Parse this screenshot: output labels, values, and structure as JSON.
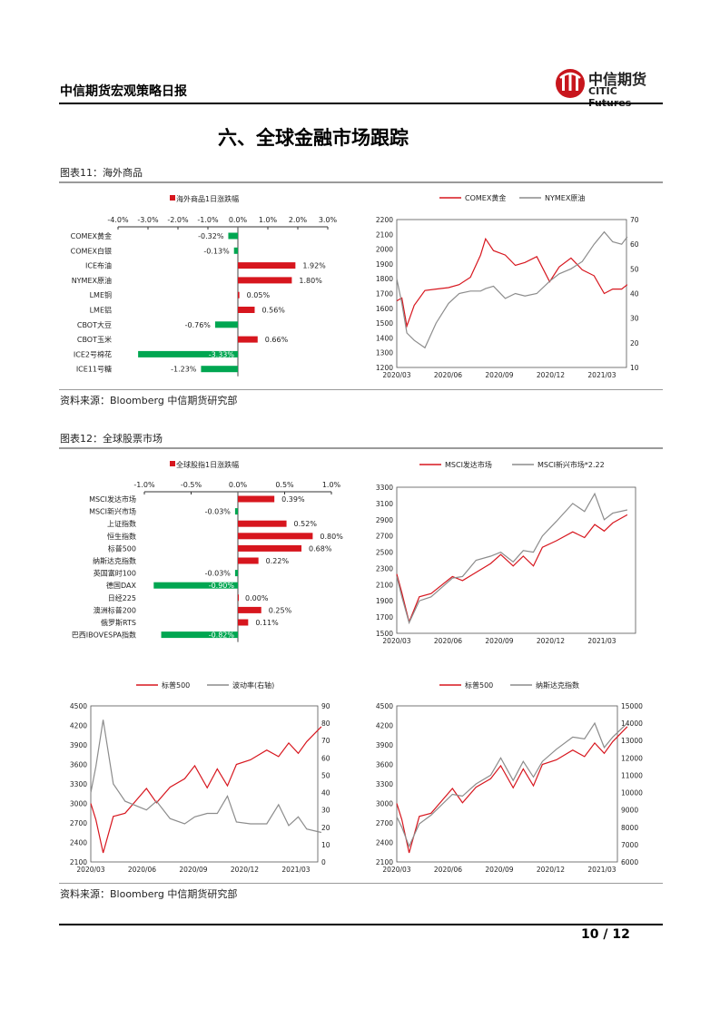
{
  "header": {
    "title": "中信期货宏观策略日报",
    "logo_cn": "中信期货",
    "logo_en": "CITIC Futures"
  },
  "section_title": "六、全球金融市场跟踪",
  "fig11": {
    "label": "图表11：海外商品",
    "source": "资料来源：Bloomberg 中信期货研究部"
  },
  "fig12": {
    "label": "图表12：全球股票市场",
    "source": "资料来源：Bloomberg 中信期货研究部"
  },
  "footer": {
    "page": "10 / 12"
  },
  "colors": {
    "up": "#d7161e",
    "down": "#00a651",
    "line_red": "#d7161e",
    "line_grey": "#8c8c8c"
  },
  "chart_data": [
    {
      "type": "bar",
      "orientation": "horizontal",
      "legend": "海外商品1日涨跌幅",
      "xlim": [
        -4,
        3
      ],
      "ticks": [
        "-4.0%",
        "-3.0%",
        "-2.0%",
        "-1.0%",
        "0.0%",
        "1.0%",
        "2.0%",
        "3.0%"
      ],
      "categories": [
        "COMEX黄金",
        "COMEX白银",
        "ICE布油",
        "NYMEX原油",
        "LME铜",
        "LME铝",
        "CBOT大豆",
        "CBOT玉米",
        "ICE2号棉花",
        "ICE11号糖"
      ],
      "values": [
        -0.32,
        -0.13,
        1.92,
        1.8,
        0.05,
        0.56,
        -0.76,
        0.66,
        -3.33,
        -1.23
      ],
      "labels": [
        "-0.32%",
        "-0.13%",
        "1.92%",
        "1.80%",
        "0.05%",
        "0.56%",
        "-0.76%",
        "0.66%",
        "-3.33%",
        "-1.23%"
      ]
    },
    {
      "type": "line",
      "series": [
        {
          "name": "COMEX黄金",
          "axis": "left"
        },
        {
          "name": "NYMEX原油",
          "axis": "right"
        }
      ],
      "ylim_left": [
        1200,
        2200
      ],
      "yticks_left": [
        "2200",
        "2100",
        "2000",
        "1900",
        "1800",
        "1700",
        "1600",
        "1500",
        "1400",
        "1300",
        "1200"
      ],
      "ylim_right": [
        10,
        70
      ],
      "yticks_right": [
        "70",
        "60",
        "50",
        "40",
        "30",
        "20",
        "10"
      ],
      "xticks": [
        "2020/03",
        "2020/06",
        "2020/09",
        "2020/12",
        "2021/03"
      ],
      "x": [
        "2020-03-01",
        "2020-03-10",
        "2020-03-19",
        "2020-04-01",
        "2020-04-20",
        "2020-05-10",
        "2020-06-01",
        "2020-06-20",
        "2020-07-10",
        "2020-07-28",
        "2020-08-06",
        "2020-08-20",
        "2020-09-10",
        "2020-09-28",
        "2020-10-15",
        "2020-11-05",
        "2020-11-28",
        "2020-12-15",
        "2021-01-05",
        "2021-01-25",
        "2021-02-15",
        "2021-03-05",
        "2021-03-20",
        "2021-04-05",
        "2021-04-15"
      ],
      "y_left": [
        1650,
        1670,
        1480,
        1620,
        1720,
        1730,
        1740,
        1760,
        1810,
        1960,
        2070,
        1990,
        1960,
        1890,
        1910,
        1950,
        1780,
        1880,
        1940,
        1860,
        1820,
        1700,
        1730,
        1730,
        1760
      ],
      "y_right": [
        46,
        36,
        24,
        21,
        18,
        28,
        36,
        40,
        41,
        41,
        42,
        43,
        38,
        40,
        39,
        40,
        45,
        48,
        50,
        53,
        60,
        65,
        61,
        60,
        63
      ]
    },
    {
      "type": "bar",
      "orientation": "horizontal",
      "legend": "全球股指1日涨跌幅",
      "xlim": [
        -1,
        1
      ],
      "ticks": [
        "-1.0%",
        "-0.5%",
        "0.0%",
        "0.5%",
        "1.0%"
      ],
      "categories": [
        "MSCI发达市场",
        "MSCI新兴市场",
        "上证指数",
        "恒生指数",
        "标普500",
        "纳斯达克指数",
        "英国富时100",
        "德国DAX",
        "日经225",
        "澳洲标普200",
        "俄罗斯RTS",
        "巴西IBOVESPA指数"
      ],
      "values": [
        0.39,
        -0.03,
        0.52,
        0.8,
        0.68,
        0.22,
        -0.03,
        -0.9,
        0.0,
        0.25,
        0.11,
        -0.82
      ],
      "labels": [
        "0.39%",
        "-0.03%",
        "0.52%",
        "0.80%",
        "0.68%",
        "0.22%",
        "-0.03%",
        "-0.90%",
        "0.00%",
        "0.25%",
        "0.11%",
        "-0.82%"
      ]
    },
    {
      "type": "line",
      "series": [
        {
          "name": "MSCI发达市场",
          "axis": "left"
        },
        {
          "name": "MSCI新兴市场*2.22",
          "axis": "left"
        }
      ],
      "ylim_left": [
        1500,
        3300
      ],
      "yticks_left": [
        "3300",
        "3100",
        "2900",
        "2700",
        "2500",
        "2300",
        "2100",
        "1900",
        "1700",
        "1500"
      ],
      "xticks": [
        "2020/03",
        "2020/06",
        "2020/09",
        "2020/12",
        "2021/03"
      ],
      "x": [
        "2020-03-01",
        "2020-03-10",
        "2020-03-23",
        "2020-04-10",
        "2020-05-01",
        "2020-06-08",
        "2020-06-26",
        "2020-07-20",
        "2020-08-15",
        "2020-09-02",
        "2020-09-24",
        "2020-10-12",
        "2020-10-30",
        "2020-11-15",
        "2020-12-10",
        "2021-01-08",
        "2021-01-29",
        "2021-02-16",
        "2021-03-05",
        "2021-03-20",
        "2021-04-15"
      ],
      "y_left": [
        2230,
        2000,
        1640,
        1950,
        1990,
        2200,
        2150,
        2250,
        2360,
        2470,
        2330,
        2450,
        2330,
        2560,
        2640,
        2750,
        2680,
        2840,
        2760,
        2860,
        2960
      ],
      "y_right": [
        2200,
        1950,
        1630,
        1900,
        1950,
        2180,
        2200,
        2400,
        2450,
        2500,
        2380,
        2520,
        2500,
        2700,
        2880,
        3100,
        3000,
        3220,
        2900,
        2980,
        3020
      ]
    },
    {
      "type": "line",
      "series": [
        {
          "name": "标普500",
          "axis": "left"
        },
        {
          "name": "波动率(右轴)",
          "axis": "right"
        }
      ],
      "ylim_left": [
        2100,
        4500
      ],
      "yticks_left": [
        "4500",
        "4200",
        "3900",
        "3600",
        "3300",
        "3000",
        "2700",
        "2400",
        "2100"
      ],
      "ylim_right": [
        0,
        90
      ],
      "yticks_right": [
        "90",
        "80",
        "70",
        "60",
        "50",
        "40",
        "30",
        "20",
        "10",
        "0"
      ],
      "xticks": [
        "2020/03",
        "2020/06",
        "2020/09",
        "2020/12",
        "2021/03"
      ],
      "x": [
        "2020-03-01",
        "2020-03-10",
        "2020-03-23",
        "2020-04-10",
        "2020-05-01",
        "2020-06-08",
        "2020-06-26",
        "2020-07-20",
        "2020-08-15",
        "2020-09-02",
        "2020-09-24",
        "2020-10-12",
        "2020-10-30",
        "2020-11-15",
        "2020-12-10",
        "2021-01-08",
        "2021-01-29",
        "2021-02-16",
        "2021-03-05",
        "2021-03-20",
        "2021-04-15"
      ],
      "y_left": [
        3000,
        2750,
        2240,
        2800,
        2850,
        3230,
        3010,
        3250,
        3380,
        3580,
        3240,
        3530,
        3270,
        3600,
        3670,
        3820,
        3720,
        3930,
        3770,
        3950,
        4180
      ],
      "y_right": [
        40,
        55,
        82,
        45,
        35,
        30,
        35,
        25,
        22,
        26,
        28,
        28,
        38,
        23,
        22,
        22,
        33,
        21,
        26,
        19,
        17
      ]
    },
    {
      "type": "line",
      "series": [
        {
          "name": "标普500",
          "axis": "left"
        },
        {
          "name": "纳斯达克指数",
          "axis": "right"
        }
      ],
      "ylim_left": [
        2100,
        4500
      ],
      "yticks_left": [
        "4500",
        "4200",
        "3900",
        "3600",
        "3300",
        "3000",
        "2700",
        "2400",
        "2100"
      ],
      "ylim_right": [
        6000,
        15000
      ],
      "yticks_right": [
        "15000",
        "14000",
        "13000",
        "12000",
        "11000",
        "10000",
        "9000",
        "8000",
        "7000",
        "6000"
      ],
      "xticks": [
        "2020/03",
        "2020/06",
        "2020/09",
        "2020/12",
        "2021/03"
      ],
      "x": [
        "2020-03-01",
        "2020-03-10",
        "2020-03-23",
        "2020-04-10",
        "2020-05-01",
        "2020-06-08",
        "2020-06-26",
        "2020-07-20",
        "2020-08-15",
        "2020-09-02",
        "2020-09-24",
        "2020-10-12",
        "2020-10-30",
        "2020-11-15",
        "2020-12-10",
        "2021-01-08",
        "2021-01-29",
        "2021-02-16",
        "2021-03-05",
        "2021-03-20",
        "2021-04-15"
      ],
      "y_left": [
        3000,
        2750,
        2240,
        2800,
        2850,
        3230,
        3010,
        3250,
        3380,
        3580,
        3240,
        3530,
        3270,
        3600,
        3670,
        3820,
        3720,
        3930,
        3770,
        3950,
        4180
      ],
      "y_right": [
        8600,
        8000,
        6900,
        8200,
        8700,
        9900,
        9800,
        10500,
        11000,
        12000,
        10700,
        11800,
        10900,
        11800,
        12500,
        13200,
        13100,
        14000,
        12600,
        13200,
        14000
      ]
    }
  ]
}
